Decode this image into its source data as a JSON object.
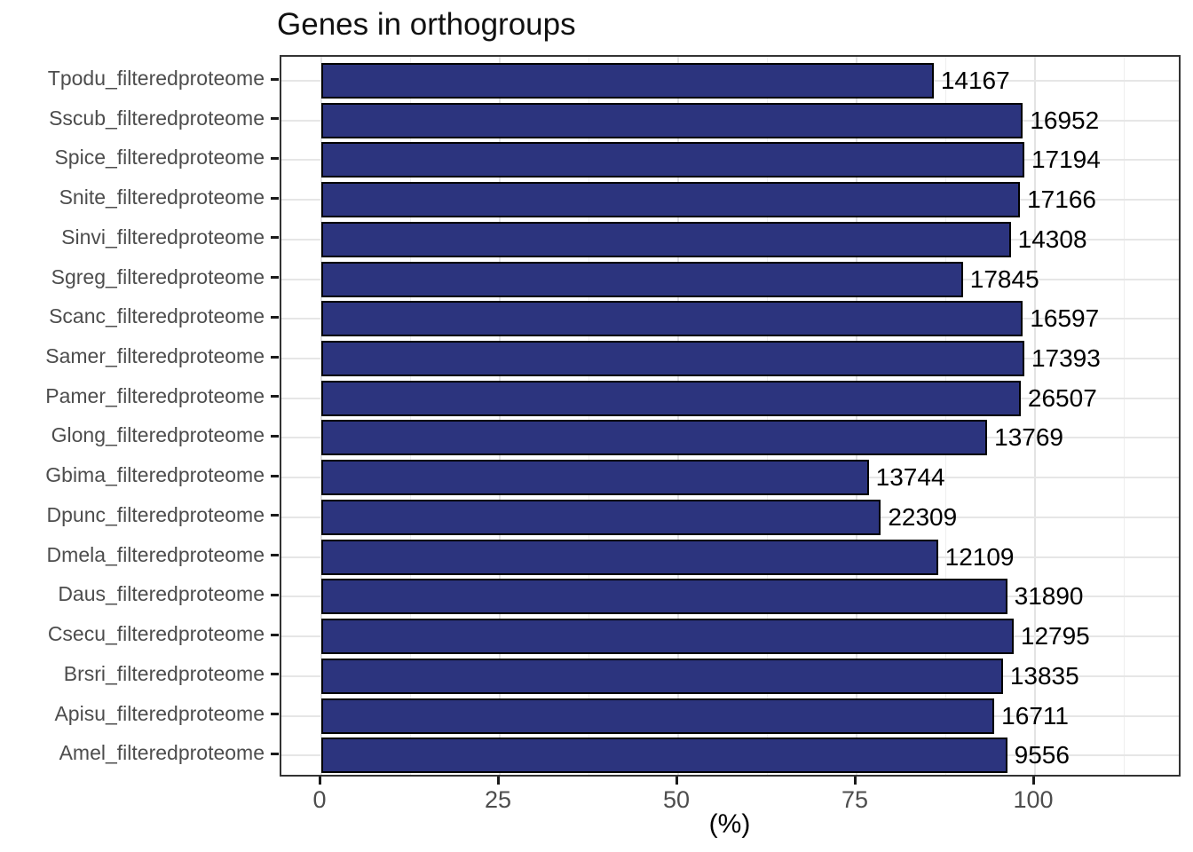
{
  "title": "Genes in orthogroups",
  "x_axis_title": "(%)",
  "chart_data": {
    "type": "bar",
    "orientation": "horizontal",
    "title": "Genes in orthogroups",
    "xlabel": "(%)",
    "ylabel": "",
    "xlim": [
      -5.6,
      120.6
    ],
    "x_major_ticks": [
      0,
      25,
      50,
      75,
      100
    ],
    "x_minor_gridlines": [
      12.5,
      37.5,
      62.5,
      87.5,
      112.5
    ],
    "grid": true,
    "legend": "none",
    "categories": [
      "Tpodu_filteredproteome",
      "Sscub_filteredproteome",
      "Spice_filteredproteome",
      "Snite_filteredproteome",
      "Sinvi_filteredproteome",
      "Sgreg_filteredproteome",
      "Scanc_filteredproteome",
      "Samer_filteredproteome",
      "Pamer_filteredproteome",
      "Glong_filteredproteome",
      "Gbima_filteredproteome",
      "Dpunc_filteredproteome",
      "Dmela_filteredproteome",
      "Daus_filteredproteome",
      "Csecu_filteredproteome",
      "Brsri_filteredproteome",
      "Apisu_filteredproteome",
      "Amel_filteredproteome"
    ],
    "series": [
      {
        "name": "percent_genes_in_orthogroups",
        "values": [
          85.8,
          98.3,
          98.5,
          97.9,
          96.6,
          89.9,
          98.3,
          98.5,
          98.0,
          93.3,
          76.7,
          78.4,
          86.4,
          96.1,
          97.0,
          95.5,
          94.3,
          96.1
        ]
      },
      {
        "name": "gene_count_labels",
        "values": [
          14167,
          16952,
          17194,
          17166,
          14308,
          17845,
          16597,
          17393,
          26507,
          13769,
          13744,
          22309,
          12109,
          31890,
          12795,
          13835,
          16711,
          9556
        ]
      }
    ],
    "colors": {
      "bar_fill": "#2c347e",
      "bar_stroke": "#000000",
      "grid_major": "#e3e3e3",
      "grid_minor": "#efefef",
      "panel_border": "#333333",
      "axis_text": "#4d4d4d",
      "label_text": "#000000"
    }
  }
}
